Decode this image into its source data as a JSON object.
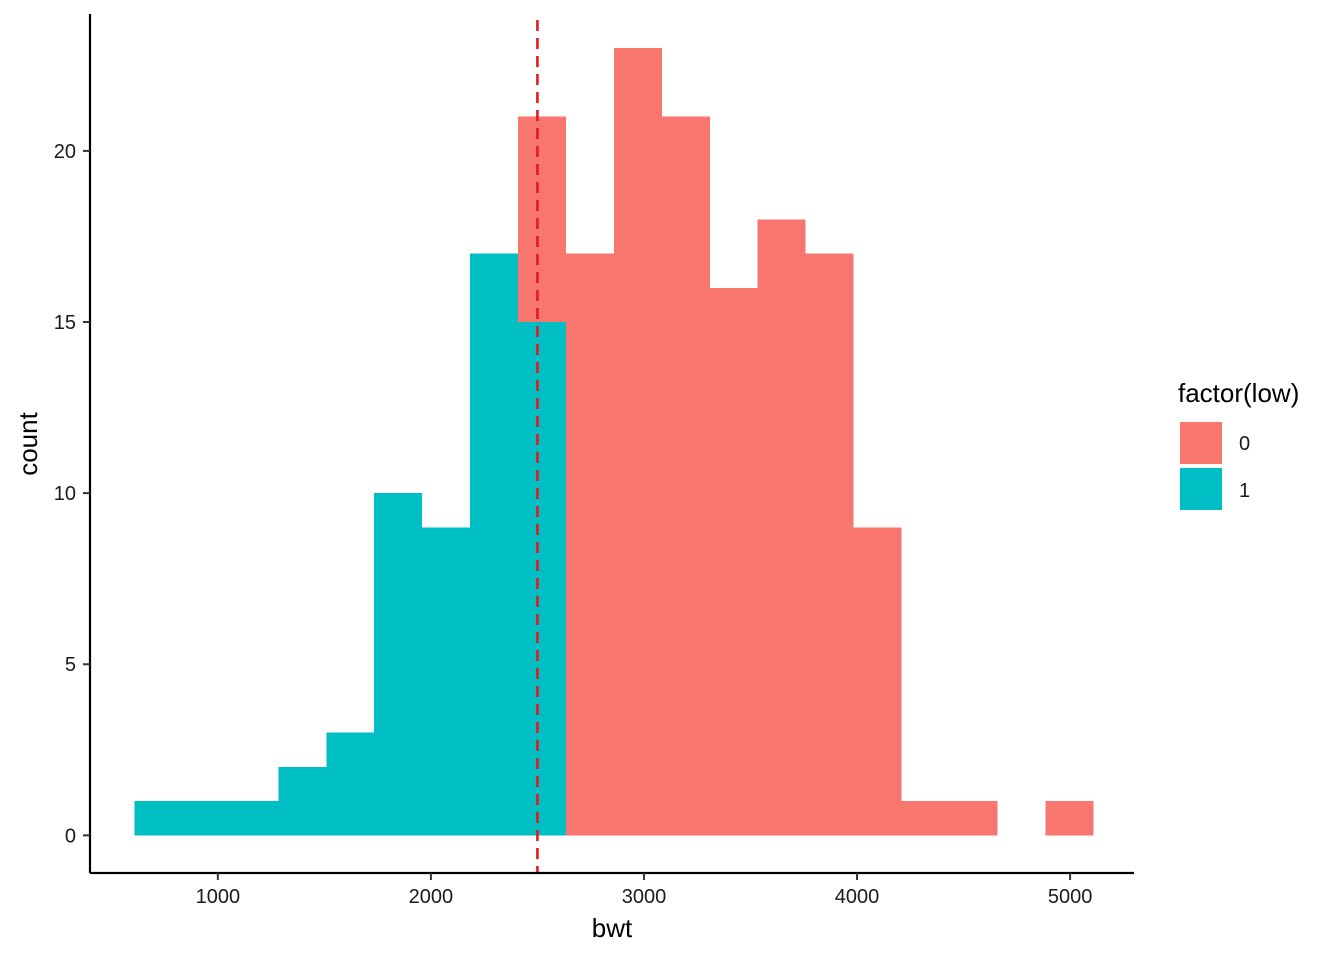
{
  "chart_data": {
    "type": "histogram",
    "xlabel": "bwt",
    "ylabel": "count",
    "xlim": [
      400,
      5300
    ],
    "ylim": [
      -1.1,
      24
    ],
    "x_ticks": [
      1000,
      2000,
      3000,
      4000,
      5000
    ],
    "y_ticks": [
      0,
      5,
      10,
      15,
      20
    ],
    "bins": [
      {
        "x0": 609,
        "x1": 834,
        "total": 1,
        "low1": 1
      },
      {
        "x0": 834,
        "x1": 1059,
        "total": 1,
        "low1": 1
      },
      {
        "x0": 1059,
        "x1": 1284,
        "total": 1,
        "low1": 1
      },
      {
        "x0": 1284,
        "x1": 1509,
        "total": 2,
        "low1": 2
      },
      {
        "x0": 1509,
        "x1": 1734,
        "total": 3,
        "low1": 3
      },
      {
        "x0": 1734,
        "x1": 1959,
        "total": 10,
        "low1": 10
      },
      {
        "x0": 1959,
        "x1": 2184,
        "total": 9,
        "low1": 9
      },
      {
        "x0": 2184,
        "x1": 2409,
        "total": 17,
        "low1": 17
      },
      {
        "x0": 2409,
        "x1": 2634,
        "total": 21,
        "low1": 15
      },
      {
        "x0": 2634,
        "x1": 2859,
        "total": 17,
        "low1": 0
      },
      {
        "x0": 2859,
        "x1": 3084,
        "total": 23,
        "low1": 0
      },
      {
        "x0": 3084,
        "x1": 3309,
        "total": 21,
        "low1": 0
      },
      {
        "x0": 3309,
        "x1": 3534,
        "total": 16,
        "low1": 0
      },
      {
        "x0": 3534,
        "x1": 3759,
        "total": 18,
        "low1": 0
      },
      {
        "x0": 3759,
        "x1": 3984,
        "total": 17,
        "low1": 0
      },
      {
        "x0": 3984,
        "x1": 4209,
        "total": 9,
        "low1": 0
      },
      {
        "x0": 4209,
        "x1": 4434,
        "total": 1,
        "low1": 0
      },
      {
        "x0": 4434,
        "x1": 4659,
        "total": 1,
        "low1": 0
      },
      {
        "x0": 4659,
        "x1": 4884,
        "total": 0,
        "low1": 0
      },
      {
        "x0": 4884,
        "x1": 5109,
        "total": 1,
        "low1": 0
      }
    ],
    "vline": {
      "x": 2500,
      "color": "#E41A1C",
      "style": "dashed"
    },
    "legend": {
      "title": "factor(low)",
      "placement": "right",
      "items": [
        {
          "label": "0",
          "color": "#F8766D"
        },
        {
          "label": "1",
          "color": "#00BFC4"
        }
      ]
    }
  }
}
